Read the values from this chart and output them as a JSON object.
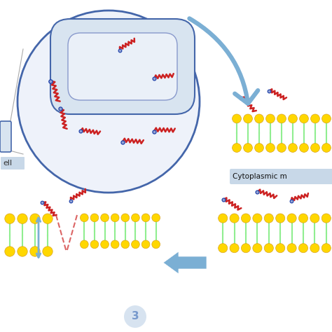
{
  "background_color": "#ffffff",
  "membrane_yellow": "#FFD700",
  "membrane_yellow_dark": "#DAA520",
  "membrane_green": "#90EE90",
  "arrow_blue": "#7BAFD4",
  "cell_outline": "#4466AA",
  "circle_fill": "#EEF2FA",
  "bact_fill": "#D8E4F0",
  "bact_inner_fill": "#EAF0F8",
  "pediocin_red": "#CC2222",
  "pediocin_blue": "#2244AA",
  "text_color": "#333333",
  "label_3_color": "#7799CC",
  "label_bg": "#D0DFEE",
  "cytoplasmic_bg": "#C8D8E8",
  "cell_label_bg": "#C8D8E8",
  "figsize": [
    4.74,
    4.74
  ],
  "dpi": 100
}
